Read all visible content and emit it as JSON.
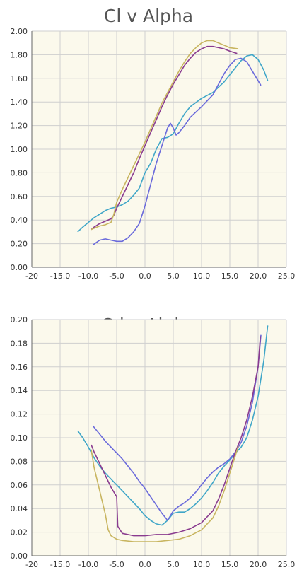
{
  "chart_data": [
    {
      "type": "line",
      "title": "Cl v Alpha",
      "xlabel": "",
      "ylabel": "",
      "xlim": [
        -20,
        25
      ],
      "ylim": [
        0,
        2
      ],
      "x_ticks": [
        "-20",
        "-15.0",
        "-10.0",
        "-5.0",
        "0.0",
        "5.0",
        "10.0",
        "15.0",
        "20.0",
        "25.0"
      ],
      "y_ticks": [
        "0.00",
        "0.20",
        "0.40",
        "0.60",
        "0.80",
        "1.00",
        "1.20",
        "1.40",
        "1.60",
        "1.80",
        "2.00"
      ],
      "grid": true,
      "background": "#fbf9ec",
      "series": [
        {
          "color": "#3fa6c8",
          "points": [
            [
              -11.9,
              0.3
            ],
            [
              -11.0,
              0.34
            ],
            [
              -10.0,
              0.38
            ],
            [
              -9.0,
              0.42
            ],
            [
              -8.0,
              0.45
            ],
            [
              -7.0,
              0.48
            ],
            [
              -6.0,
              0.5
            ],
            [
              -5.0,
              0.51
            ],
            [
              -4.0,
              0.53
            ],
            [
              -3.0,
              0.56
            ],
            [
              -2.0,
              0.61
            ],
            [
              -1.0,
              0.67
            ],
            [
              0.0,
              0.8
            ],
            [
              1.0,
              0.88
            ],
            [
              2.0,
              1.0
            ],
            [
              3.0,
              1.09
            ],
            [
              4.0,
              1.1
            ],
            [
              5.0,
              1.13
            ],
            [
              6.0,
              1.22
            ],
            [
              7.0,
              1.3
            ],
            [
              8.0,
              1.36
            ],
            [
              10.0,
              1.43
            ],
            [
              12.0,
              1.48
            ],
            [
              14.0,
              1.57
            ],
            [
              16.0,
              1.69
            ],
            [
              17.0,
              1.75
            ],
            [
              18.0,
              1.79
            ],
            [
              19.0,
              1.8
            ],
            [
              20.0,
              1.76
            ],
            [
              21.0,
              1.67
            ],
            [
              21.7,
              1.58
            ]
          ]
        },
        {
          "color": "#6a6adb",
          "points": [
            [
              -9.2,
              0.19
            ],
            [
              -8.0,
              0.23
            ],
            [
              -7.0,
              0.24
            ],
            [
              -6.0,
              0.23
            ],
            [
              -5.0,
              0.22
            ],
            [
              -4.0,
              0.22
            ],
            [
              -3.0,
              0.25
            ],
            [
              -2.0,
              0.3
            ],
            [
              -1.0,
              0.37
            ],
            [
              0.0,
              0.52
            ],
            [
              1.0,
              0.7
            ],
            [
              2.0,
              0.88
            ],
            [
              3.0,
              1.03
            ],
            [
              4.0,
              1.18
            ],
            [
              4.5,
              1.22
            ],
            [
              5.0,
              1.18
            ],
            [
              5.5,
              1.12
            ],
            [
              6.0,
              1.14
            ],
            [
              7.0,
              1.2
            ],
            [
              8.0,
              1.27
            ],
            [
              10.0,
              1.36
            ],
            [
              12.0,
              1.46
            ],
            [
              13.0,
              1.55
            ],
            [
              14.0,
              1.64
            ],
            [
              15.0,
              1.71
            ],
            [
              16.0,
              1.76
            ],
            [
              17.0,
              1.77
            ],
            [
              18.0,
              1.74
            ],
            [
              19.0,
              1.66
            ],
            [
              20.5,
              1.54
            ]
          ]
        },
        {
          "color": "#8a3b8f",
          "points": [
            [
              -9.5,
              0.32
            ],
            [
              -9.0,
              0.34
            ],
            [
              -8.0,
              0.37
            ],
            [
              -7.0,
              0.39
            ],
            [
              -6.0,
              0.41
            ],
            [
              -5.5,
              0.44
            ],
            [
              -5.0,
              0.5
            ],
            [
              -4.0,
              0.6
            ],
            [
              -3.0,
              0.7
            ],
            [
              -2.0,
              0.8
            ],
            [
              -1.0,
              0.92
            ],
            [
              0.0,
              1.03
            ],
            [
              1.0,
              1.14
            ],
            [
              2.0,
              1.25
            ],
            [
              3.0,
              1.36
            ],
            [
              4.0,
              1.46
            ],
            [
              5.0,
              1.55
            ],
            [
              6.0,
              1.63
            ],
            [
              7.0,
              1.71
            ],
            [
              8.0,
              1.77
            ],
            [
              9.0,
              1.82
            ],
            [
              10.0,
              1.85
            ],
            [
              11.0,
              1.87
            ],
            [
              12.0,
              1.87
            ],
            [
              13.0,
              1.86
            ],
            [
              14.0,
              1.85
            ],
            [
              15.0,
              1.83
            ],
            [
              16.3,
              1.81
            ]
          ]
        },
        {
          "color": "#c8b560",
          "points": [
            [
              -9.5,
              0.32
            ],
            [
              -9.0,
              0.33
            ],
            [
              -8.0,
              0.35
            ],
            [
              -7.0,
              0.36
            ],
            [
              -6.5,
              0.37
            ],
            [
              -6.0,
              0.38
            ],
            [
              -5.5,
              0.45
            ],
            [
              -5.0,
              0.55
            ],
            [
              -4.0,
              0.66
            ],
            [
              -3.0,
              0.76
            ],
            [
              -2.0,
              0.86
            ],
            [
              -1.0,
              0.96
            ],
            [
              0.0,
              1.06
            ],
            [
              1.0,
              1.17
            ],
            [
              2.0,
              1.28
            ],
            [
              3.0,
              1.39
            ],
            [
              4.0,
              1.48
            ],
            [
              5.0,
              1.57
            ],
            [
              6.0,
              1.66
            ],
            [
              7.0,
              1.74
            ],
            [
              8.0,
              1.81
            ],
            [
              9.0,
              1.86
            ],
            [
              10.0,
              1.9
            ],
            [
              11.0,
              1.92
            ],
            [
              12.0,
              1.92
            ],
            [
              13.0,
              1.9
            ],
            [
              14.0,
              1.88
            ],
            [
              15.0,
              1.86
            ],
            [
              16.5,
              1.85
            ]
          ]
        }
      ]
    },
    {
      "type": "line",
      "title": "Cd v Alpha",
      "xlabel": "",
      "ylabel": "",
      "xlim": [
        -20,
        25
      ],
      "ylim": [
        0,
        0.2
      ],
      "x_ticks": [
        "-20",
        "-15.0",
        "-10.0",
        "-5.0",
        "0.0",
        "5.0",
        "10.0",
        "15.0",
        "20.0",
        "25.0"
      ],
      "y_ticks": [
        "0.00",
        "0.02",
        "0.04",
        "0.06",
        "0.08",
        "0.10",
        "0.12",
        "0.14",
        "0.16",
        "0.18",
        "0.20"
      ],
      "grid": true,
      "background": "#fbf9ec",
      "series": [
        {
          "color": "#3fa6c8",
          "points": [
            [
              -11.9,
              0.106
            ],
            [
              -11.0,
              0.1
            ],
            [
              -10.0,
              0.092
            ],
            [
              -9.0,
              0.083
            ],
            [
              -8.0,
              0.076
            ],
            [
              -7.0,
              0.07
            ],
            [
              -6.0,
              0.065
            ],
            [
              -5.0,
              0.06
            ],
            [
              -4.0,
              0.055
            ],
            [
              -3.0,
              0.05
            ],
            [
              -2.0,
              0.045
            ],
            [
              -1.0,
              0.04
            ],
            [
              0.0,
              0.034
            ],
            [
              1.0,
              0.03
            ],
            [
              2.0,
              0.027
            ],
            [
              3.0,
              0.026
            ],
            [
              4.0,
              0.03
            ],
            [
              5.0,
              0.036
            ],
            [
              6.0,
              0.037
            ],
            [
              7.0,
              0.037
            ],
            [
              8.0,
              0.04
            ],
            [
              9.0,
              0.044
            ],
            [
              10.0,
              0.049
            ],
            [
              11.0,
              0.055
            ],
            [
              12.0,
              0.062
            ],
            [
              13.0,
              0.07
            ],
            [
              14.0,
              0.076
            ],
            [
              15.0,
              0.081
            ],
            [
              16.0,
              0.087
            ],
            [
              17.0,
              0.092
            ],
            [
              18.0,
              0.1
            ],
            [
              19.0,
              0.115
            ],
            [
              20.0,
              0.135
            ],
            [
              21.0,
              0.165
            ],
            [
              21.7,
              0.195
            ]
          ]
        },
        {
          "color": "#6a6adb",
          "points": [
            [
              -9.2,
              0.11
            ],
            [
              -8.0,
              0.103
            ],
            [
              -7.0,
              0.097
            ],
            [
              -6.0,
              0.092
            ],
            [
              -5.0,
              0.087
            ],
            [
              -4.0,
              0.082
            ],
            [
              -3.0,
              0.076
            ],
            [
              -2.0,
              0.07
            ],
            [
              -1.0,
              0.063
            ],
            [
              0.0,
              0.057
            ],
            [
              1.0,
              0.05
            ],
            [
              2.0,
              0.043
            ],
            [
              3.0,
              0.036
            ],
            [
              4.0,
              0.03
            ],
            [
              5.0,
              0.038
            ],
            [
              6.0,
              0.042
            ],
            [
              7.0,
              0.045
            ],
            [
              8.0,
              0.049
            ],
            [
              9.0,
              0.054
            ],
            [
              10.0,
              0.06
            ],
            [
              11.0,
              0.066
            ],
            [
              12.0,
              0.071
            ],
            [
              13.0,
              0.075
            ],
            [
              14.0,
              0.078
            ],
            [
              15.0,
              0.082
            ],
            [
              16.0,
              0.088
            ],
            [
              17.0,
              0.096
            ],
            [
              18.0,
              0.11
            ],
            [
              19.0,
              0.13
            ],
            [
              20.0,
              0.16
            ],
            [
              20.5,
              0.187
            ]
          ]
        },
        {
          "color": "#8a3b8f",
          "points": [
            [
              -9.5,
              0.094
            ],
            [
              -9.0,
              0.088
            ],
            [
              -8.0,
              0.078
            ],
            [
              -7.0,
              0.068
            ],
            [
              -6.0,
              0.058
            ],
            [
              -5.0,
              0.05
            ],
            [
              -4.8,
              0.025
            ],
            [
              -4.0,
              0.019
            ],
            [
              -3.0,
              0.018
            ],
            [
              -2.0,
              0.017
            ],
            [
              0.0,
              0.017
            ],
            [
              2.0,
              0.018
            ],
            [
              4.0,
              0.018
            ],
            [
              6.0,
              0.02
            ],
            [
              8.0,
              0.023
            ],
            [
              10.0,
              0.028
            ],
            [
              12.0,
              0.038
            ],
            [
              13.0,
              0.048
            ],
            [
              14.0,
              0.06
            ],
            [
              15.0,
              0.074
            ],
            [
              16.0,
              0.088
            ],
            [
              17.0,
              0.1
            ],
            [
              18.0,
              0.115
            ],
            [
              19.0,
              0.135
            ],
            [
              20.0,
              0.16
            ],
            [
              20.4,
              0.186
            ]
          ]
        },
        {
          "color": "#c8b560",
          "points": [
            [
              -9.5,
              0.09
            ],
            [
              -9.0,
              0.075
            ],
            [
              -8.0,
              0.055
            ],
            [
              -7.0,
              0.035
            ],
            [
              -6.5,
              0.022
            ],
            [
              -6.0,
              0.017
            ],
            [
              -5.0,
              0.014
            ],
            [
              -4.0,
              0.013
            ],
            [
              -2.0,
              0.012
            ],
            [
              0.0,
              0.012
            ],
            [
              2.0,
              0.012
            ],
            [
              4.0,
              0.013
            ],
            [
              6.0,
              0.014
            ],
            [
              8.0,
              0.017
            ],
            [
              10.0,
              0.022
            ],
            [
              12.0,
              0.032
            ],
            [
              13.0,
              0.042
            ],
            [
              14.0,
              0.055
            ],
            [
              15.0,
              0.07
            ],
            [
              16.0,
              0.085
            ],
            [
              16.5,
              0.093
            ]
          ]
        }
      ]
    }
  ]
}
